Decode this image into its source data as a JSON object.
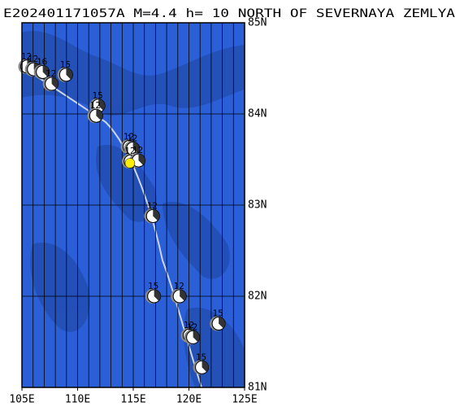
{
  "title": "E202401171057A M=4.4 h= 10 NORTH OF SEVERNAYA ZEMLYA",
  "map": {
    "lonlim": [
      105,
      125
    ],
    "latlim": [
      81,
      85
    ],
    "lon_ticks": [
      {
        "value": 105,
        "label": "105E"
      },
      {
        "value": 110,
        "label": "110E"
      },
      {
        "value": 115,
        "label": "115E"
      },
      {
        "value": 120,
        "label": "120E"
      },
      {
        "value": 125,
        "label": "125E"
      }
    ],
    "lat_ticks": [
      {
        "value": 81,
        "label": "81N"
      },
      {
        "value": 82,
        "label": "82N"
      },
      {
        "value": 83,
        "label": "83N"
      },
      {
        "value": 84,
        "label": "84N"
      },
      {
        "value": 85,
        "label": "85N"
      }
    ],
    "events": [
      {
        "lon": 105.4,
        "lat": 84.52,
        "label": "12"
      },
      {
        "lon": 106.0,
        "lat": 84.49,
        "label": "12"
      },
      {
        "lon": 106.8,
        "lat": 84.46,
        "label": "16"
      },
      {
        "lon": 107.6,
        "lat": 84.33,
        "label": "12"
      },
      {
        "lon": 108.9,
        "lat": 84.43,
        "label": "15"
      },
      {
        "lon": 111.8,
        "lat": 84.09,
        "label": "15"
      },
      {
        "lon": 111.6,
        "lat": 83.98,
        "label": "12"
      },
      {
        "lon": 114.6,
        "lat": 83.64,
        "label": "12"
      },
      {
        "lon": 114.9,
        "lat": 83.62,
        "label": "12"
      },
      {
        "lon": 114.7,
        "lat": 83.48,
        "label": "12"
      },
      {
        "lon": 115.4,
        "lat": 83.49,
        "label": "12"
      },
      {
        "lon": 116.7,
        "lat": 82.88,
        "label": "12"
      },
      {
        "lon": 116.8,
        "lat": 82.0,
        "label": "15"
      },
      {
        "lon": 119.1,
        "lat": 82.0,
        "label": "12"
      },
      {
        "lon": 122.6,
        "lat": 81.7,
        "label": "15"
      },
      {
        "lon": 120.0,
        "lat": 81.57,
        "label": "12"
      },
      {
        "lon": 120.3,
        "lat": 81.55,
        "label": "12"
      },
      {
        "lon": 121.1,
        "lat": 81.22,
        "label": "15"
      }
    ],
    "epicenter": {
      "lon": 114.7,
      "lat": 83.46
    }
  }
}
